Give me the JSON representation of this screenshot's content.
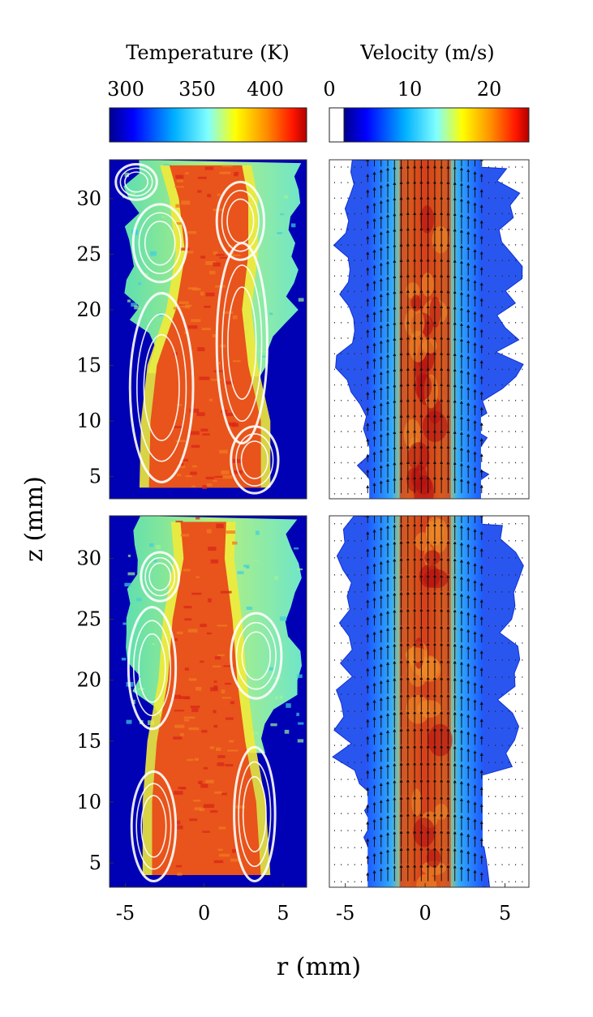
{
  "chart_data": [
    {
      "type": "heatmap",
      "panel": "temperature-top",
      "quantity": "Temperature (K)",
      "colorbar": {
        "title": "Temperature (K)",
        "ticks": [
          300,
          350,
          400
        ],
        "range": [
          280,
          430
        ]
      },
      "xlim": [
        -6,
        6.5
      ],
      "ylim": [
        3,
        33.5
      ],
      "x_ticks": [],
      "y_ticks": [
        5,
        10,
        15,
        20,
        25,
        30
      ],
      "core": {
        "z": [
          4,
          10,
          15,
          20,
          25,
          30,
          33
        ],
        "left": [
          -3.5,
          -3.4,
          -3.0,
          -1.8,
          -1.2,
          -1.6,
          -2.2
        ],
        "right": [
          3.6,
          3.6,
          2.8,
          2.4,
          2.8,
          2.8,
          2.4
        ]
      },
      "overlay_contours": [
        {
          "cx": -2.7,
          "cz": 13,
          "rx": 2.0,
          "rz": 8.5
        },
        {
          "cx": 2.4,
          "cz": 17,
          "rx": 1.6,
          "rz": 9.0
        },
        {
          "cx": 3.2,
          "cz": 6.5,
          "rx": 1.5,
          "rz": 3.0
        },
        {
          "cx": -2.8,
          "cz": 26,
          "rx": 1.7,
          "rz": 3.5
        },
        {
          "cx": 2.3,
          "cz": 28,
          "rx": 1.5,
          "rz": 3.5
        },
        {
          "cx": -4.3,
          "cz": 31.5,
          "rx": 1.3,
          "rz": 1.6
        }
      ]
    },
    {
      "type": "heatmap",
      "panel": "velocity-top",
      "quantity": "Velocity (m/s)",
      "colorbar": {
        "title": "Velocity (m/s)",
        "ticks": [
          0,
          10,
          20
        ],
        "range": [
          0,
          24
        ]
      },
      "xlim": [
        -6,
        6.5
      ],
      "ylim": [
        3,
        33.5
      ],
      "x_ticks": [],
      "y_ticks": [],
      "peak_velocity": 22,
      "core_halfwidth": 3.5,
      "quiver": true
    },
    {
      "type": "heatmap",
      "panel": "temperature-bottom",
      "quantity": "Temperature (K)",
      "xlim": [
        -6,
        6.5
      ],
      "ylim": [
        3,
        33.5
      ],
      "x_ticks": [
        -5,
        0,
        5
      ],
      "y_ticks": [
        5,
        10,
        15,
        20,
        25,
        30
      ],
      "core": {
        "z": [
          4,
          10,
          15,
          20,
          25,
          30,
          33
        ],
        "left": [
          -3.3,
          -3.3,
          -3.0,
          -2.3,
          -2.0,
          -1.3,
          -1.5
        ],
        "right": [
          3.6,
          3.3,
          2.6,
          2.1,
          1.8,
          1.3,
          1.4
        ]
      },
      "overlay_contours": [
        {
          "cx": -3.2,
          "cz": 8,
          "rx": 1.4,
          "rz": 4.5
        },
        {
          "cx": 3.2,
          "cz": 9,
          "rx": 1.3,
          "rz": 5.5
        },
        {
          "cx": 3.3,
          "cz": 22,
          "rx": 1.6,
          "rz": 3.5
        },
        {
          "cx": -3.3,
          "cz": 21,
          "rx": 1.5,
          "rz": 5.0
        },
        {
          "cx": -2.8,
          "cz": 28.5,
          "rx": 1.2,
          "rz": 2.0
        }
      ]
    },
    {
      "type": "heatmap",
      "panel": "velocity-bottom",
      "quantity": "Velocity (m/s)",
      "xlim": [
        -6,
        6.5
      ],
      "ylim": [
        3,
        33.5
      ],
      "x_ticks": [
        -5,
        0,
        5
      ],
      "y_ticks": [],
      "peak_velocity": 23,
      "core_halfwidth": 3.6,
      "quiver": true
    }
  ],
  "figure": {
    "xlabel": "r (mm)",
    "ylabel": "z (mm)",
    "temp_colormap": [
      "#00008f",
      "#0000ff",
      "#0090ff",
      "#80ffff",
      "#ffff00",
      "#ff9000",
      "#ff0000",
      "#800000"
    ],
    "vel_colormap": [
      "#00008f",
      "#0000ff",
      "#0090ff",
      "#80ffff",
      "#ffff00",
      "#ff9000",
      "#ff0000",
      "#800000"
    ],
    "contour_color": "#ffffff",
    "background_cold": "#0000b4"
  }
}
